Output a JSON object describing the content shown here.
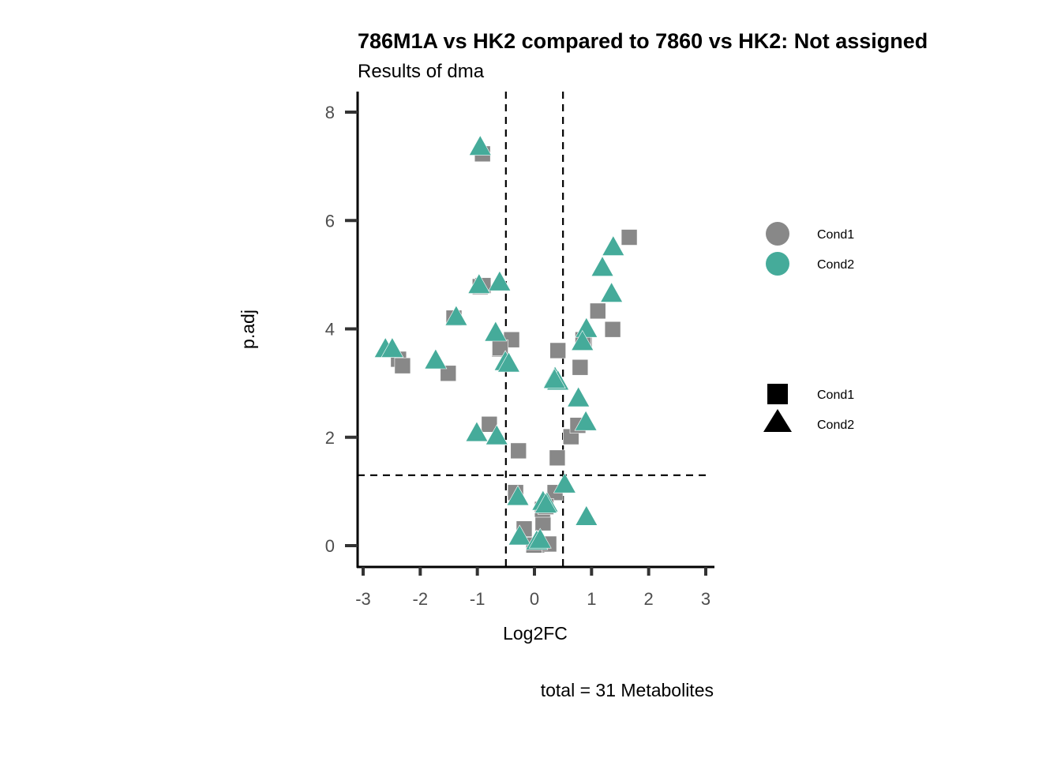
{
  "chart_data": {
    "type": "scatter",
    "title": "786M1A vs HK2 compared to 7860 vs HK2: Not assigned",
    "subtitle": "Results of dma",
    "xlabel": "Log2FC",
    "ylabel": "p.adj",
    "caption": "total = 31 Metabolites",
    "xlim": [
      -3,
      3
    ],
    "ylim": [
      0,
      8
    ],
    "xticks": [
      "-3",
      "-2",
      "-1",
      "0",
      "1",
      "2",
      "3"
    ],
    "yticks": [
      "0",
      "2",
      "4",
      "6",
      "8"
    ],
    "thresholds": {
      "x": [
        -0.5,
        0.5
      ],
      "y": 1.3
    },
    "grid": false,
    "legend_placement": "right",
    "legend_color": {
      "entries": [
        {
          "label": "Cond1",
          "color": "#888888"
        },
        {
          "label": "Cond2",
          "color": "#45AB9A"
        }
      ]
    },
    "legend_shape": {
      "entries": [
        {
          "label": "Cond1",
          "shape": "square"
        },
        {
          "label": "Cond2",
          "shape": "triangle"
        }
      ]
    },
    "series": [
      {
        "name": "Cond1",
        "shape": "square",
        "color": "#888888",
        "points": [
          [
            -0.91,
            7.23
          ],
          [
            -0.95,
            4.78
          ],
          [
            -1.41,
            4.2
          ],
          [
            -2.38,
            3.44
          ],
          [
            -2.31,
            3.32
          ],
          [
            -1.51,
            3.18
          ],
          [
            -0.4,
            3.8
          ],
          [
            -0.61,
            3.63
          ],
          [
            -0.79,
            2.24
          ],
          [
            -0.28,
            1.75
          ],
          [
            0.41,
            3.6
          ],
          [
            1.11,
            4.33
          ],
          [
            1.37,
            3.99
          ],
          [
            1.66,
            5.69
          ],
          [
            0.87,
            3.78
          ],
          [
            0.8,
            3.29
          ],
          [
            0.64,
            2.01
          ],
          [
            0.76,
            2.22
          ],
          [
            0.4,
            1.62
          ],
          [
            -0.33,
            0.98
          ],
          [
            0.36,
            0.98
          ],
          [
            -0.18,
            0.31
          ],
          [
            0.15,
            0.42
          ],
          [
            0.04,
            0.01
          ],
          [
            0.25,
            0.03
          ],
          [
            0.14,
            0.67
          ],
          [
            -0.01,
            0.01
          ],
          [
            0.2,
            0.72
          ],
          [
            0.85,
            3.8
          ],
          [
            -0.6,
            3.65
          ],
          [
            -0.9,
            4.8
          ]
        ]
      },
      {
        "name": "Cond2",
        "shape": "triangle",
        "color": "#45AB9A",
        "points": [
          [
            -0.95,
            7.35
          ],
          [
            -0.97,
            4.8
          ],
          [
            -0.61,
            4.85
          ],
          [
            -1.37,
            4.21
          ],
          [
            -2.61,
            3.62
          ],
          [
            -2.49,
            3.62
          ],
          [
            -1.73,
            3.41
          ],
          [
            -0.68,
            3.92
          ],
          [
            -0.51,
            3.38
          ],
          [
            -1.01,
            2.07
          ],
          [
            -0.66,
            2.01
          ],
          [
            1.38,
            5.5
          ],
          [
            1.19,
            5.12
          ],
          [
            1.35,
            4.64
          ],
          [
            0.91,
            3.99
          ],
          [
            0.84,
            3.75
          ],
          [
            0.36,
            3.09
          ],
          [
            0.41,
            3.02
          ],
          [
            0.77,
            2.71
          ],
          [
            0.9,
            2.27
          ],
          [
            0.53,
            1.12
          ],
          [
            -0.29,
            0.89
          ],
          [
            0.15,
            0.8
          ],
          [
            0.22,
            0.77
          ],
          [
            -0.26,
            0.16
          ],
          [
            0.04,
            0.07
          ],
          [
            0.91,
            0.52
          ],
          [
            0.1,
            0.1
          ],
          [
            0.2,
            0.75
          ],
          [
            -0.45,
            3.35
          ],
          [
            0.35,
            3.05
          ]
        ]
      }
    ]
  }
}
